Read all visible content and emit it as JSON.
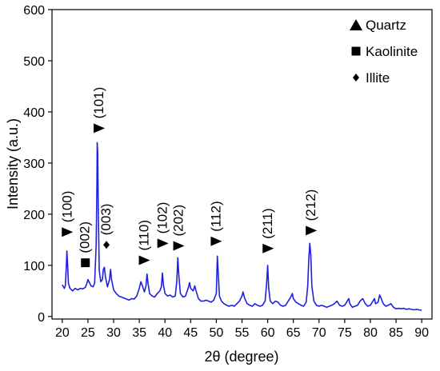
{
  "chart_data": {
    "type": "line",
    "title": "",
    "xlabel": "2θ (degree)",
    "ylabel": "Intensity (a.u.)",
    "xlim": [
      18,
      92
    ],
    "ylim": [
      -5,
      600
    ],
    "xticks": [
      "20",
      "25",
      "30",
      "35",
      "40",
      "45",
      "50",
      "55",
      "60",
      "65",
      "70",
      "75",
      "80",
      "85",
      "90"
    ],
    "yticks": [
      "0",
      "100",
      "200",
      "300",
      "400",
      "500",
      "600"
    ],
    "line_color": "#1f1fe0",
    "series": [
      {
        "points": [
          [
            20.0,
            62
          ],
          [
            20.4,
            55
          ],
          [
            20.6,
            60
          ],
          [
            20.8,
            100
          ],
          [
            20.9,
            128
          ],
          [
            21.0,
            110
          ],
          [
            21.2,
            65
          ],
          [
            21.5,
            55
          ],
          [
            22.0,
            50
          ],
          [
            22.5,
            55
          ],
          [
            23.0,
            52
          ],
          [
            23.5,
            55
          ],
          [
            24.0,
            54
          ],
          [
            24.5,
            57
          ],
          [
            24.8,
            65
          ],
          [
            25.0,
            72
          ],
          [
            25.3,
            66
          ],
          [
            25.6,
            60
          ],
          [
            26.0,
            58
          ],
          [
            26.3,
            65
          ],
          [
            26.6,
            140
          ],
          [
            26.75,
            260
          ],
          [
            26.8,
            340
          ],
          [
            26.9,
            320
          ],
          [
            27.0,
            220
          ],
          [
            27.2,
            90
          ],
          [
            27.5,
            68
          ],
          [
            27.8,
            72
          ],
          [
            28.0,
            92
          ],
          [
            28.2,
            96
          ],
          [
            28.4,
            78
          ],
          [
            28.8,
            58
          ],
          [
            29.2,
            72
          ],
          [
            29.4,
            92
          ],
          [
            29.6,
            72
          ],
          [
            30.0,
            52
          ],
          [
            30.5,
            45
          ],
          [
            31.0,
            40
          ],
          [
            31.5,
            38
          ],
          [
            32.0,
            36
          ],
          [
            32.5,
            34
          ],
          [
            33.0,
            32
          ],
          [
            33.5,
            35
          ],
          [
            34.0,
            34
          ],
          [
            34.5,
            40
          ],
          [
            35.0,
            55
          ],
          [
            35.3,
            68
          ],
          [
            35.6,
            60
          ],
          [
            36.0,
            48
          ],
          [
            36.3,
            60
          ],
          [
            36.5,
            83
          ],
          [
            36.7,
            65
          ],
          [
            37.0,
            45
          ],
          [
            37.5,
            40
          ],
          [
            38.0,
            38
          ],
          [
            38.5,
            45
          ],
          [
            39.0,
            50
          ],
          [
            39.3,
            58
          ],
          [
            39.5,
            85
          ],
          [
            39.7,
            62
          ],
          [
            40.0,
            45
          ],
          [
            40.5,
            40
          ],
          [
            41.0,
            42
          ],
          [
            41.5,
            38
          ],
          [
            42.0,
            40
          ],
          [
            42.3,
            68
          ],
          [
            42.5,
            115
          ],
          [
            42.7,
            80
          ],
          [
            43.0,
            45
          ],
          [
            43.5,
            38
          ],
          [
            44.0,
            40
          ],
          [
            44.5,
            55
          ],
          [
            44.8,
            66
          ],
          [
            45.0,
            55
          ],
          [
            45.5,
            50
          ],
          [
            45.8,
            60
          ],
          [
            46.0,
            52
          ],
          [
            46.5,
            35
          ],
          [
            47.0,
            30
          ],
          [
            47.5,
            30
          ],
          [
            48.0,
            32
          ],
          [
            48.5,
            30
          ],
          [
            49.0,
            28
          ],
          [
            49.5,
            32
          ],
          [
            50.0,
            45
          ],
          [
            50.2,
            118
          ],
          [
            50.4,
            80
          ],
          [
            50.6,
            40
          ],
          [
            51.0,
            30
          ],
          [
            51.5,
            25
          ],
          [
            52.0,
            22
          ],
          [
            52.5,
            20
          ],
          [
            53.0,
            22
          ],
          [
            53.5,
            20
          ],
          [
            54.0,
            25
          ],
          [
            54.5,
            30
          ],
          [
            55.0,
            40
          ],
          [
            55.2,
            48
          ],
          [
            55.5,
            36
          ],
          [
            56.0,
            25
          ],
          [
            56.5,
            22
          ],
          [
            57.0,
            20
          ],
          [
            57.5,
            25
          ],
          [
            58.0,
            22
          ],
          [
            58.5,
            20
          ],
          [
            59.0,
            22
          ],
          [
            59.5,
            30
          ],
          [
            59.8,
            65
          ],
          [
            60.0,
            100
          ],
          [
            60.2,
            55
          ],
          [
            60.5,
            30
          ],
          [
            61.0,
            25
          ],
          [
            61.5,
            30
          ],
          [
            62.0,
            28
          ],
          [
            62.5,
            22
          ],
          [
            63.0,
            20
          ],
          [
            63.5,
            22
          ],
          [
            64.0,
            30
          ],
          [
            64.5,
            38
          ],
          [
            64.8,
            45
          ],
          [
            65.0,
            35
          ],
          [
            65.5,
            28
          ],
          [
            66.0,
            25
          ],
          [
            66.5,
            22
          ],
          [
            67.0,
            20
          ],
          [
            67.5,
            28
          ],
          [
            67.8,
            60
          ],
          [
            68.0,
            110
          ],
          [
            68.2,
            143
          ],
          [
            68.4,
            120
          ],
          [
            68.6,
            60
          ],
          [
            69.0,
            30
          ],
          [
            69.5,
            22
          ],
          [
            70.0,
            20
          ],
          [
            70.5,
            22
          ],
          [
            71.0,
            20
          ],
          [
            71.5,
            18
          ],
          [
            72.0,
            20
          ],
          [
            72.5,
            22
          ],
          [
            73.0,
            25
          ],
          [
            73.5,
            30
          ],
          [
            74.0,
            22
          ],
          [
            74.5,
            20
          ],
          [
            75.0,
            22
          ],
          [
            75.5,
            30
          ],
          [
            75.8,
            35
          ],
          [
            76.0,
            25
          ],
          [
            76.5,
            18
          ],
          [
            77.0,
            20
          ],
          [
            77.5,
            22
          ],
          [
            78.0,
            30
          ],
          [
            78.5,
            35
          ],
          [
            79.0,
            25
          ],
          [
            79.5,
            20
          ],
          [
            80.0,
            22
          ],
          [
            80.5,
            30
          ],
          [
            80.8,
            35
          ],
          [
            81.0,
            25
          ],
          [
            81.5,
            28
          ],
          [
            81.8,
            42
          ],
          [
            82.0,
            38
          ],
          [
            82.3,
            30
          ],
          [
            82.5,
            25
          ],
          [
            83.0,
            20
          ],
          [
            83.5,
            22
          ],
          [
            84.0,
            25
          ],
          [
            84.5,
            18
          ],
          [
            85.0,
            15
          ],
          [
            85.5,
            16
          ],
          [
            86.0,
            15
          ],
          [
            86.5,
            16
          ],
          [
            87.0,
            14
          ],
          [
            87.5,
            15
          ],
          [
            88.0,
            14
          ],
          [
            88.5,
            13
          ],
          [
            89.0,
            14
          ],
          [
            89.5,
            13
          ],
          [
            90.0,
            12
          ]
        ]
      }
    ],
    "annotations": [
      {
        "text": "(100)",
        "x": 21.0,
        "y": 165,
        "marker": "triangle"
      },
      {
        "text": "(002)",
        "x": 24.5,
        "y": 105,
        "marker": "square"
      },
      {
        "text": "(101)",
        "x": 27.2,
        "y": 368,
        "marker": "triangle"
      },
      {
        "text": "(003)",
        "x": 28.6,
        "y": 140,
        "marker": "diamond"
      },
      {
        "text": "(110)",
        "x": 36.0,
        "y": 110,
        "marker": "triangle"
      },
      {
        "text": "(102)",
        "x": 39.6,
        "y": 143,
        "marker": "triangle"
      },
      {
        "text": "(202)",
        "x": 42.7,
        "y": 138,
        "marker": "triangle"
      },
      {
        "text": "(112)",
        "x": 50.0,
        "y": 147,
        "marker": "triangle"
      },
      {
        "text": "(211)",
        "x": 60.1,
        "y": 133,
        "marker": "triangle"
      },
      {
        "text": "(212)",
        "x": 68.5,
        "y": 168,
        "marker": "triangle"
      }
    ],
    "legend": {
      "placement": "top-right",
      "items": [
        {
          "label": "Quartz",
          "marker": "triangle"
        },
        {
          "label": "Kaolinite",
          "marker": "square"
        },
        {
          "label": "Illite",
          "marker": "diamond"
        }
      ]
    },
    "grid": false
  }
}
